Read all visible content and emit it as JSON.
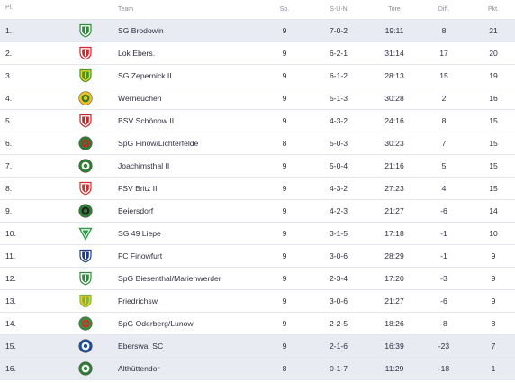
{
  "header": {
    "pl": "Pl.",
    "team": "Team",
    "sp": "Sp.",
    "sun": "S-U-N",
    "tore": "Tore",
    "diff": "Diff.",
    "pkt": "Pkt."
  },
  "rows": [
    {
      "pl": "1.",
      "team": "SG Brodowin",
      "sp": "9",
      "sun": "7-0-2",
      "tore": "19:11",
      "diff": "8",
      "pkt": "21",
      "highlight": true,
      "crest": {
        "icon": "crest-green-white-shield",
        "primary": "#2e8b3a",
        "secondary": "#ffffff"
      }
    },
    {
      "pl": "2.",
      "team": "Lok Ebers.",
      "sp": "9",
      "sun": "6-2-1",
      "tore": "31:14",
      "diff": "17",
      "pkt": "20",
      "highlight": false,
      "crest": {
        "icon": "crest-red-white-shield",
        "primary": "#d8232a",
        "secondary": "#ffffff"
      }
    },
    {
      "pl": "3.",
      "team": "SG Zepernick II",
      "sp": "9",
      "sun": "6-1-2",
      "tore": "28:13",
      "diff": "15",
      "pkt": "19",
      "highlight": false,
      "crest": {
        "icon": "crest-green-yellow-shield",
        "primary": "#3a9a3a",
        "secondary": "#f2d21b"
      }
    },
    {
      "pl": "4.",
      "team": "Werneuchen",
      "sp": "9",
      "sun": "5-1-3",
      "tore": "30:28",
      "diff": "2",
      "pkt": "16",
      "highlight": false,
      "crest": {
        "icon": "crest-yellow-green-round",
        "primary": "#f2c21b",
        "secondary": "#2e7d32"
      }
    },
    {
      "pl": "5.",
      "team": "BSV Schönow II",
      "sp": "9",
      "sun": "4-3-2",
      "tore": "24:16",
      "diff": "8",
      "pkt": "15",
      "highlight": false,
      "crest": {
        "icon": "crest-red-white-shield",
        "primary": "#c62828",
        "secondary": "#ffffff"
      }
    },
    {
      "pl": "6.",
      "team": "SpG Finow/Lichterfelde",
      "sp": "8",
      "sun": "5-0-3",
      "tore": "30:23",
      "diff": "7",
      "pkt": "15",
      "highlight": false,
      "crest": {
        "icon": "crest-green-red-round",
        "primary": "#2e7d32",
        "secondary": "#c62828"
      }
    },
    {
      "pl": "7.",
      "team": "Joachimsthal II",
      "sp": "9",
      "sun": "5-0-4",
      "tore": "21:16",
      "diff": "5",
      "pkt": "15",
      "highlight": false,
      "crest": {
        "icon": "crest-green-white-round",
        "primary": "#2e7d32",
        "secondary": "#ffffff"
      }
    },
    {
      "pl": "8.",
      "team": "FSV Britz II",
      "sp": "9",
      "sun": "4-3-2",
      "tore": "27:23",
      "diff": "4",
      "pkt": "15",
      "highlight": false,
      "crest": {
        "icon": "crest-red-white-shield",
        "primary": "#d32f2f",
        "secondary": "#ffffff"
      }
    },
    {
      "pl": "9.",
      "team": "Beiersdorf",
      "sp": "9",
      "sun": "4-2-3",
      "tore": "21:27",
      "diff": "-6",
      "pkt": "14",
      "highlight": false,
      "crest": {
        "icon": "crest-green-black-round",
        "primary": "#2e7d32",
        "secondary": "#222222"
      }
    },
    {
      "pl": "10.",
      "team": "SG 49 Liepe",
      "sp": "9",
      "sun": "3-1-5",
      "tore": "17:18",
      "diff": "-1",
      "pkt": "10",
      "highlight": false,
      "crest": {
        "icon": "crest-green-white-triangle",
        "primary": "#2e9a4a",
        "secondary": "#ffffff"
      }
    },
    {
      "pl": "11.",
      "team": "FC Finowfurt",
      "sp": "9",
      "sun": "3-0-6",
      "tore": "28:29",
      "diff": "-1",
      "pkt": "9",
      "highlight": false,
      "crest": {
        "icon": "crest-blue-white-shield",
        "primary": "#1e3a8a",
        "secondary": "#ffffff"
      }
    },
    {
      "pl": "12.",
      "team": "SpG Biesenthal/Marienwerder",
      "sp": "9",
      "sun": "2-3-4",
      "tore": "17:20",
      "diff": "-3",
      "pkt": "9",
      "highlight": false,
      "crest": {
        "icon": "crest-green-white-shield",
        "primary": "#2e8b3a",
        "secondary": "#ffffff"
      }
    },
    {
      "pl": "13.",
      "team": "Friedrichsw.",
      "sp": "9",
      "sun": "3-0-6",
      "tore": "21:27",
      "diff": "-6",
      "pkt": "9",
      "highlight": false,
      "crest": {
        "icon": "crest-green-yellow-shield",
        "primary": "#7cb342",
        "secondary": "#f2d21b"
      }
    },
    {
      "pl": "14.",
      "team": "SpG Oderberg/Lunow",
      "sp": "9",
      "sun": "2-2-5",
      "tore": "18:26",
      "diff": "-8",
      "pkt": "8",
      "highlight": false,
      "crest": {
        "icon": "crest-green-red-round",
        "primary": "#388e3c",
        "secondary": "#d32f2f"
      }
    },
    {
      "pl": "15.",
      "team": "Eberswa. SC",
      "sp": "9",
      "sun": "2-1-6",
      "tore": "16:39",
      "diff": "-23",
      "pkt": "7",
      "highlight": true,
      "crest": {
        "icon": "crest-blue-white-round",
        "primary": "#1e4f9a",
        "secondary": "#ffffff"
      }
    },
    {
      "pl": "16.",
      "team": "Althüttendor",
      "sp": "8",
      "sun": "0-1-7",
      "tore": "11:29",
      "diff": "-18",
      "pkt": "1",
      "highlight": true,
      "crest": {
        "icon": "crest-green-white-round",
        "primary": "#2e7d32",
        "secondary": "#ffffff"
      }
    }
  ]
}
